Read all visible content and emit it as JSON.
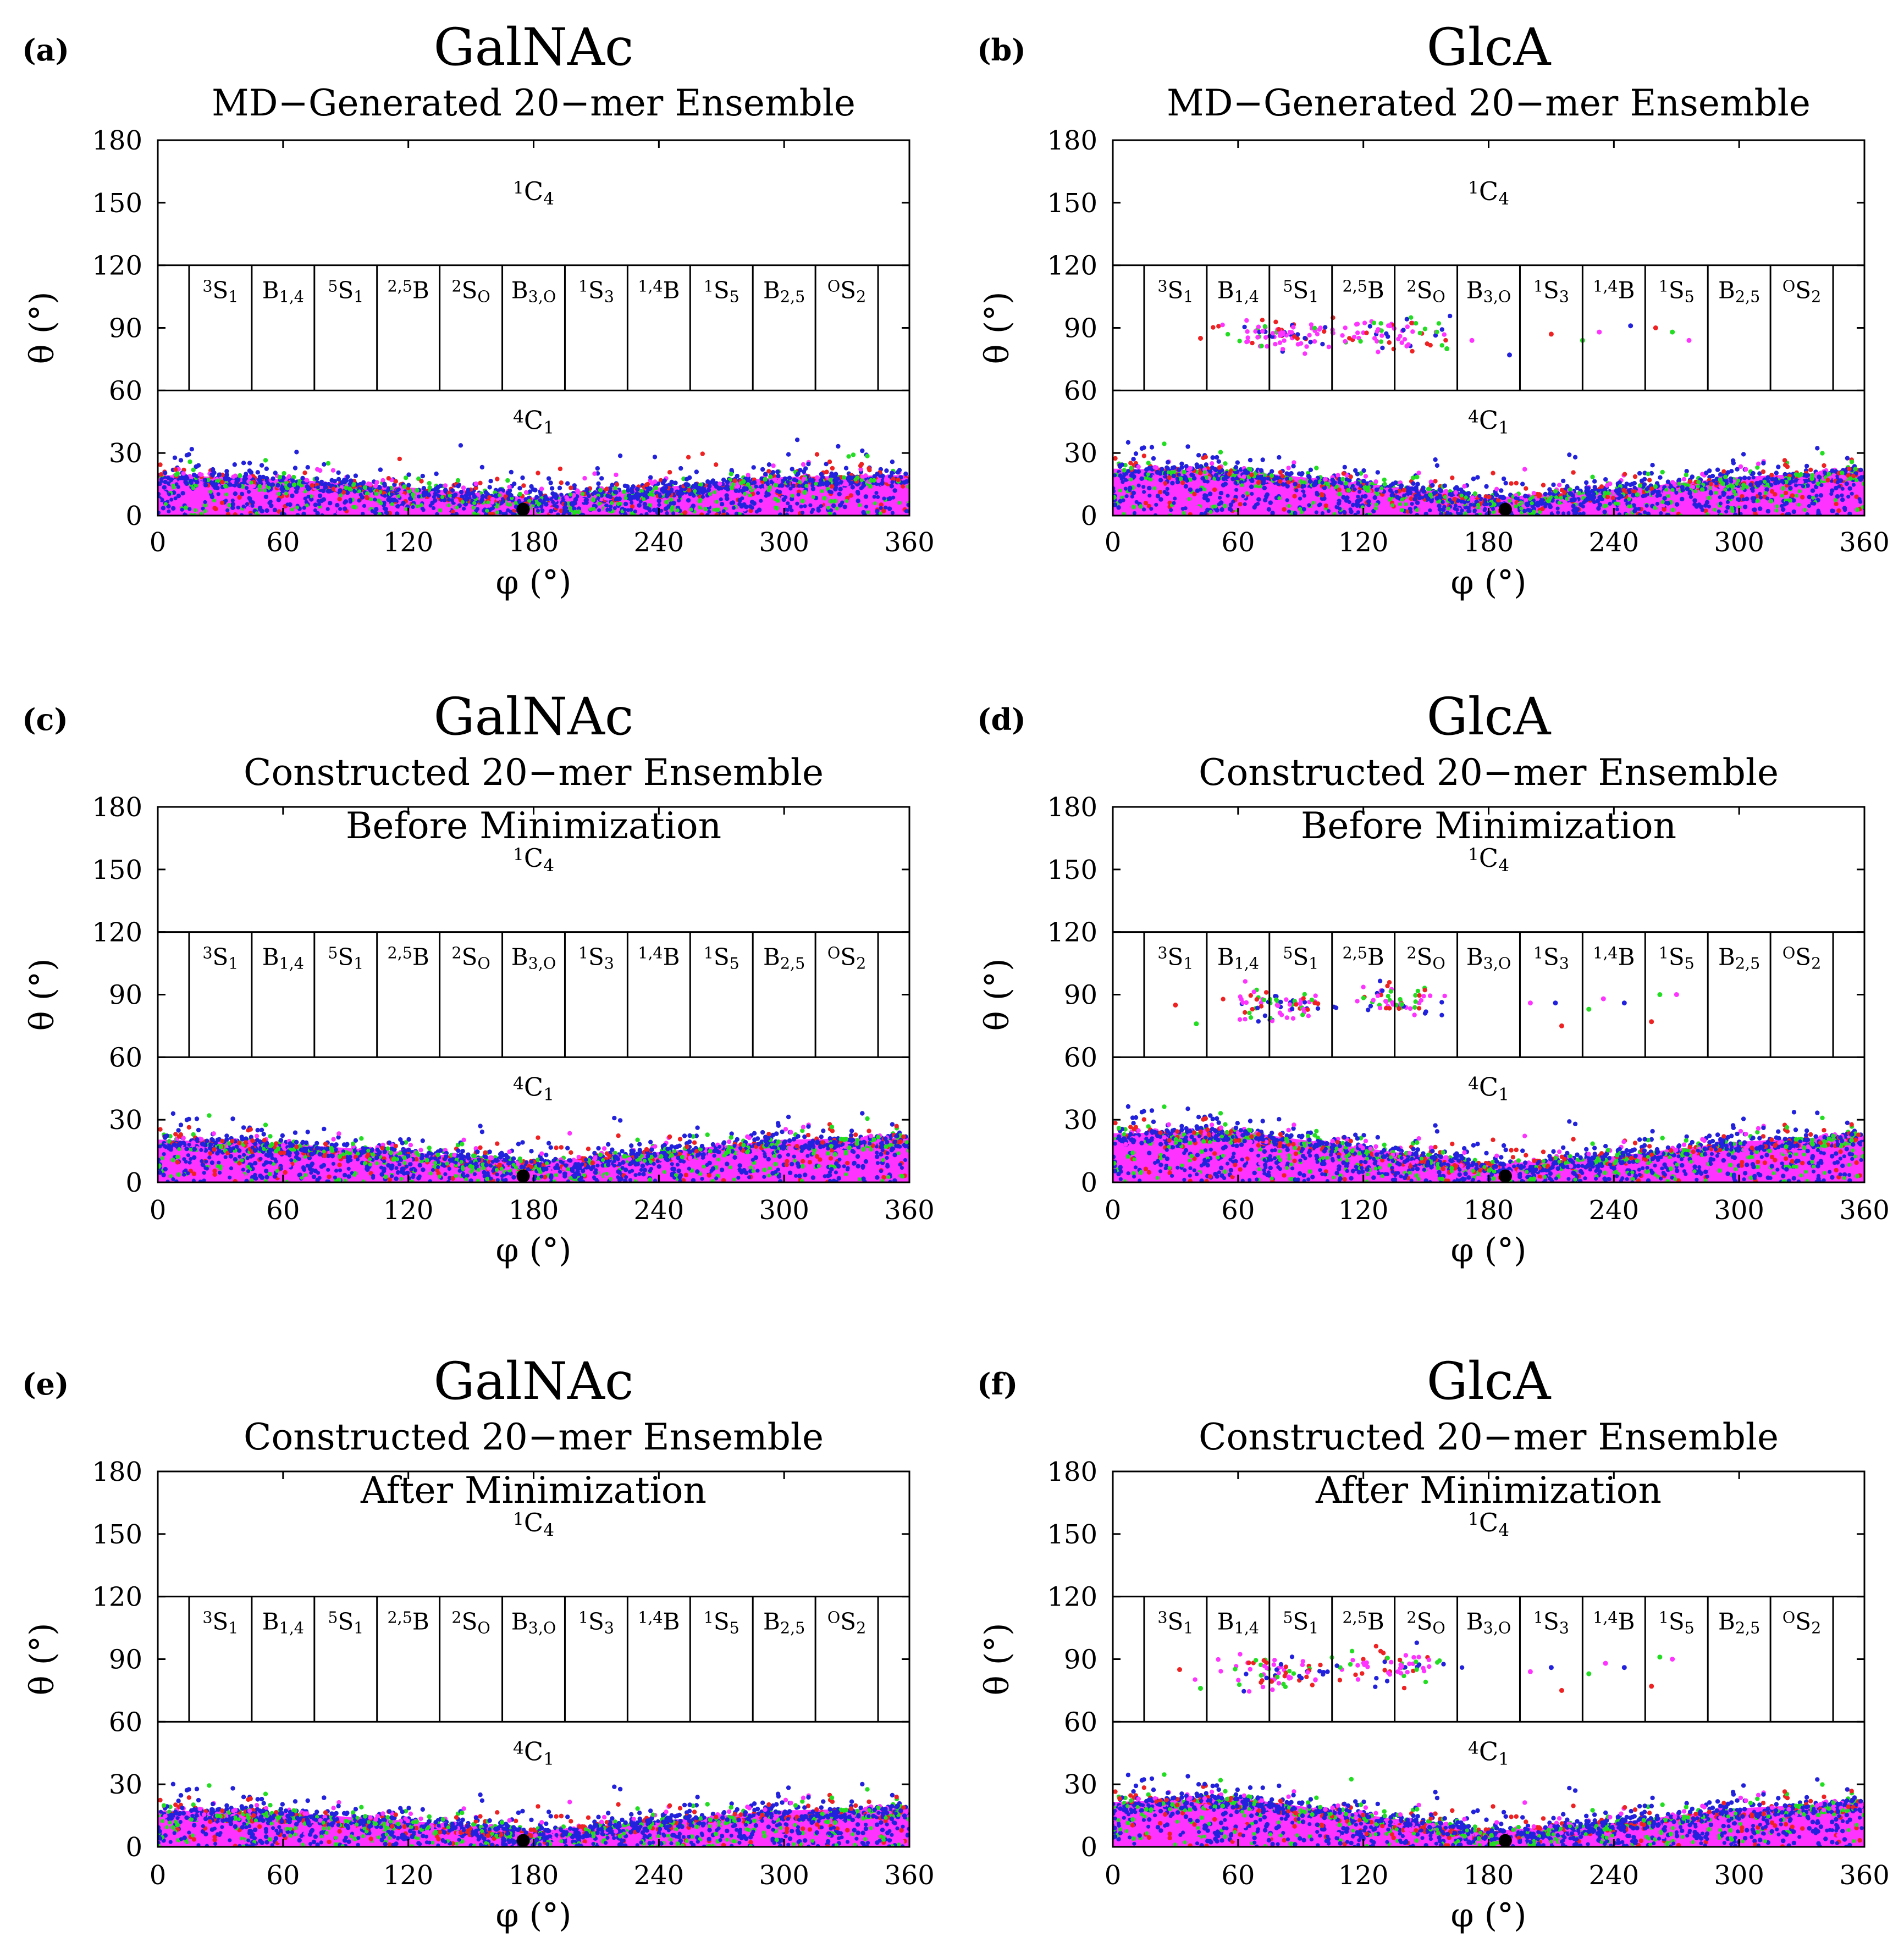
{
  "figure": {
    "colors": {
      "magenta": "#ff33ff",
      "blue": "#2222dd",
      "green": "#22dd22",
      "red": "#ee2222",
      "black": "#000000"
    }
  },
  "chart_data": [
    {
      "type": "scatter",
      "panel": "(a)",
      "molecule": "GalNAc",
      "title": "GalNAc",
      "subtitle": [
        "MD−Generated 20−mer Ensemble"
      ],
      "xlabel": "φ (°)",
      "ylabel": "θ (°)",
      "xlim": [
        0,
        360
      ],
      "ylim": [
        0,
        180
      ],
      "xticks": [
        0,
        60,
        120,
        180,
        240,
        300,
        360
      ],
      "yticks": [
        0,
        30,
        60,
        90,
        120,
        150,
        180
      ],
      "region_labels": {
        "top": "1C4",
        "bottom": "4C1"
      },
      "puckers": [
        "3S1",
        "B1,4",
        "5S1",
        "2,5B",
        "2SO",
        "B3,O",
        "1S3",
        "1,4B",
        "1S5",
        "B2,5",
        "OS2"
      ],
      "band_upper_profile": {
        "phi": [
          0,
          60,
          120,
          180,
          240,
          300,
          360
        ],
        "theta": [
          21,
          19,
          15,
          10,
          15,
          20,
          21
        ]
      },
      "scatter_region": "equatorial-empty",
      "reference_point": {
        "phi": 175,
        "theta": 3
      }
    },
    {
      "type": "scatter",
      "panel": "(b)",
      "molecule": "GlcA",
      "title": "GlcA",
      "subtitle": [
        "MD−Generated 20−mer Ensemble"
      ],
      "xlabel": "φ (°)",
      "ylabel": "θ (°)",
      "xlim": [
        0,
        360
      ],
      "ylim": [
        0,
        180
      ],
      "xticks": [
        0,
        60,
        120,
        180,
        240,
        300,
        360
      ],
      "yticks": [
        0,
        30,
        60,
        90,
        120,
        150,
        180
      ],
      "region_labels": {
        "top": "1C4",
        "bottom": "4C1"
      },
      "puckers": [
        "3S1",
        "B1,4",
        "5S1",
        "2,5B",
        "2SO",
        "B3,O",
        "1S3",
        "1,4B",
        "1S5",
        "B2,5",
        "OS2"
      ],
      "band_upper_profile": {
        "phi": [
          0,
          60,
          120,
          180,
          240,
          300,
          360
        ],
        "theta": [
          24,
          23,
          17,
          10,
          14,
          20,
          23
        ]
      },
      "equatorial_clusters": [
        {
          "phi": 80,
          "theta": 86,
          "count": 90
        },
        {
          "phi": 135,
          "theta": 87,
          "count": 70
        }
      ],
      "equatorial_sparse": [
        {
          "phi": 42,
          "theta": 85
        },
        {
          "phi": 160,
          "theta": 80
        },
        {
          "phi": 172,
          "theta": 84
        },
        {
          "phi": 190,
          "theta": 77
        },
        {
          "phi": 210,
          "theta": 87
        },
        {
          "phi": 225,
          "theta": 84
        },
        {
          "phi": 233,
          "theta": 88
        },
        {
          "phi": 248,
          "theta": 91
        },
        {
          "phi": 260,
          "theta": 90
        },
        {
          "phi": 268,
          "theta": 88
        },
        {
          "phi": 276,
          "theta": 84
        }
      ],
      "reference_point": {
        "phi": 188,
        "theta": 3
      }
    },
    {
      "type": "scatter",
      "panel": "(c)",
      "molecule": "GalNAc",
      "title": "GalNAc",
      "subtitle": [
        "Constructed 20−mer Ensemble",
        "Before Minimization"
      ],
      "xlabel": "φ (°)",
      "ylabel": "θ (°)",
      "xlim": [
        0,
        360
      ],
      "ylim": [
        0,
        180
      ],
      "xticks": [
        0,
        60,
        120,
        180,
        240,
        300,
        360
      ],
      "yticks": [
        0,
        30,
        60,
        90,
        120,
        150,
        180
      ],
      "region_labels": {
        "top": "1C4",
        "bottom": "4C1"
      },
      "puckers": [
        "3S1",
        "B1,4",
        "5S1",
        "2,5B",
        "2SO",
        "B3,O",
        "1S3",
        "1,4B",
        "1S5",
        "B2,5",
        "OS2"
      ],
      "band_upper_profile": {
        "phi": [
          0,
          60,
          120,
          180,
          240,
          300,
          360
        ],
        "theta": [
          22,
          20,
          16,
          11,
          16,
          22,
          23
        ]
      },
      "scatter_region": "equatorial-empty",
      "reference_point": {
        "phi": 175,
        "theta": 3
      }
    },
    {
      "type": "scatter",
      "panel": "(d)",
      "molecule": "GlcA",
      "title": "GlcA",
      "subtitle": [
        "Constructed 20−mer Ensemble",
        "Before Minimization"
      ],
      "xlabel": "φ (°)",
      "ylabel": "θ (°)",
      "xlim": [
        0,
        360
      ],
      "ylim": [
        0,
        180
      ],
      "xticks": [
        0,
        60,
        120,
        180,
        240,
        300,
        360
      ],
      "yticks": [
        0,
        30,
        60,
        90,
        120,
        150,
        180
      ],
      "region_labels": {
        "top": "1C4",
        "bottom": "4C1"
      },
      "puckers": [
        "3S1",
        "B1,4",
        "5S1",
        "2,5B",
        "2SO",
        "B3,O",
        "1S3",
        "1,4B",
        "1S5",
        "B2,5",
        "OS2"
      ],
      "band_upper_profile": {
        "phi": [
          0,
          60,
          120,
          180,
          240,
          300,
          360
        ],
        "theta": [
          25,
          26,
          18,
          10,
          14,
          21,
          24
        ]
      },
      "equatorial_clusters": [
        {
          "phi": 78,
          "theta": 85,
          "count": 80
        },
        {
          "phi": 135,
          "theta": 87,
          "count": 60
        }
      ],
      "equatorial_sparse": [
        {
          "phi": 30,
          "theta": 85
        },
        {
          "phi": 40,
          "theta": 76
        },
        {
          "phi": 200,
          "theta": 86
        },
        {
          "phi": 212,
          "theta": 86
        },
        {
          "phi": 215,
          "theta": 75
        },
        {
          "phi": 228,
          "theta": 83
        },
        {
          "phi": 235,
          "theta": 88
        },
        {
          "phi": 245,
          "theta": 86
        },
        {
          "phi": 258,
          "theta": 77
        },
        {
          "phi": 262,
          "theta": 90
        },
        {
          "phi": 270,
          "theta": 90
        }
      ],
      "reference_point": {
        "phi": 188,
        "theta": 3
      }
    },
    {
      "type": "scatter",
      "panel": "(e)",
      "molecule": "GalNAc",
      "title": "GalNAc",
      "subtitle": [
        "Constructed 20−mer Ensemble",
        "After Minimization"
      ],
      "xlabel": "φ (°)",
      "ylabel": "θ (°)",
      "xlim": [
        0,
        360
      ],
      "ylim": [
        0,
        180
      ],
      "xticks": [
        0,
        60,
        120,
        180,
        240,
        300,
        360
      ],
      "yticks": [
        0,
        30,
        60,
        90,
        120,
        150,
        180
      ],
      "region_labels": {
        "top": "1C4",
        "bottom": "4C1"
      },
      "puckers": [
        "3S1",
        "B1,4",
        "5S1",
        "2,5B",
        "2SO",
        "B3,O",
        "1S3",
        "1,4B",
        "1S5",
        "B2,5",
        "OS2"
      ],
      "band_upper_profile": {
        "phi": [
          0,
          60,
          120,
          180,
          240,
          300,
          360
        ],
        "theta": [
          19,
          18,
          14,
          9,
          14,
          19,
          20
        ]
      },
      "scatter_region": "equatorial-empty",
      "reference_point": {
        "phi": 175,
        "theta": 3
      }
    },
    {
      "type": "scatter",
      "panel": "(f)",
      "molecule": "GlcA",
      "title": "GlcA",
      "subtitle": [
        "Constructed 20−mer Ensemble",
        "After Minimization"
      ],
      "xlabel": "φ (°)",
      "ylabel": "θ (°)",
      "xlim": [
        0,
        360
      ],
      "ylim": [
        0,
        180
      ],
      "xticks": [
        0,
        60,
        120,
        180,
        240,
        300,
        360
      ],
      "yticks": [
        0,
        30,
        60,
        90,
        120,
        150,
        180
      ],
      "region_labels": {
        "top": "1C4",
        "bottom": "4C1"
      },
      "puckers": [
        "3S1",
        "B1,4",
        "5S1",
        "2,5B",
        "2SO",
        "B3,O",
        "1S3",
        "1,4B",
        "1S5",
        "B2,5",
        "OS2"
      ],
      "band_upper_profile": {
        "phi": [
          0,
          60,
          120,
          180,
          240,
          300,
          360
        ],
        "theta": [
          23,
          25,
          17,
          9,
          13,
          20,
          23
        ]
      },
      "equatorial_clusters": [
        {
          "phi": 80,
          "theta": 84,
          "count": 80
        },
        {
          "phi": 135,
          "theta": 87,
          "count": 60
        }
      ],
      "equatorial_sparse": [
        {
          "phi": 32,
          "theta": 85
        },
        {
          "phi": 42,
          "theta": 76
        },
        {
          "phi": 200,
          "theta": 84
        },
        {
          "phi": 210,
          "theta": 86
        },
        {
          "phi": 215,
          "theta": 75
        },
        {
          "phi": 228,
          "theta": 83
        },
        {
          "phi": 236,
          "theta": 88
        },
        {
          "phi": 245,
          "theta": 86
        },
        {
          "phi": 258,
          "theta": 77
        },
        {
          "phi": 262,
          "theta": 91
        },
        {
          "phi": 268,
          "theta": 90
        }
      ],
      "reference_point": {
        "phi": 188,
        "theta": 3
      }
    }
  ]
}
